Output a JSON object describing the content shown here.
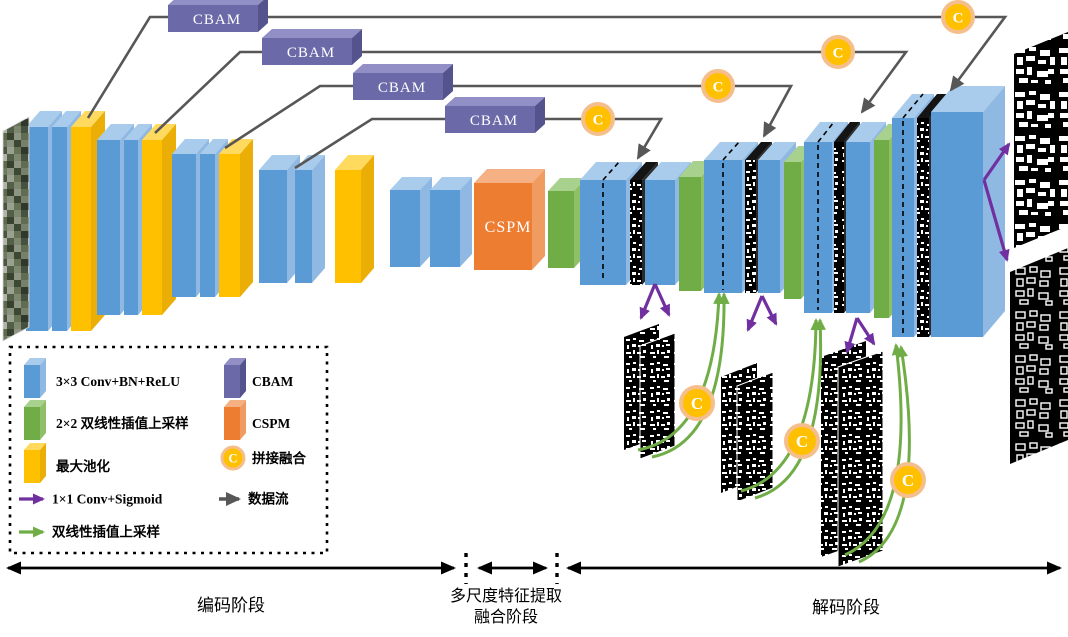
{
  "diagram": {
    "modules": {
      "cbam": "CBAM",
      "cspm": "CSPM",
      "concat": "C"
    },
    "stages": {
      "encode": "编码阶段",
      "fusion_line1": "多尺度特征提取",
      "fusion_line2": "融合阶段",
      "decode": "解码阶段"
    },
    "legend": {
      "left": [
        {
          "icon": "conv-block-icon",
          "label": "3×3 Conv+BN+ReLU"
        },
        {
          "icon": "upsample-block-icon",
          "label": "2×2 双线性插值上采样"
        },
        {
          "icon": "maxpool-block-icon",
          "label": "最大池化"
        },
        {
          "icon": "sigmoid-arrow-icon",
          "label": "1×1 Conv+Sigmoid"
        },
        {
          "icon": "upsample-arrow-icon",
          "label": "双线性插值上采样"
        }
      ],
      "right": [
        {
          "icon": "cbam-block-icon",
          "label": "CBAM"
        },
        {
          "icon": "cspm-block-icon",
          "label": "CSPM"
        },
        {
          "icon": "concat-node-icon",
          "label": "拼接融合"
        },
        {
          "icon": "dataflow-arrow-icon",
          "label": "数据流"
        }
      ]
    },
    "colors": {
      "conv": "#5B9BD5",
      "upsample": "#70AD47",
      "maxpool": "#FFC000",
      "cbam": "#6B69A8",
      "cspm": "#ED7D31",
      "concat_fill": "#FFC000",
      "concat_ring": "#F5BE8D",
      "sigmoid_arrow": "#7030A0",
      "upsample_arrow": "#70AD47",
      "dataflow": "#575757"
    }
  }
}
